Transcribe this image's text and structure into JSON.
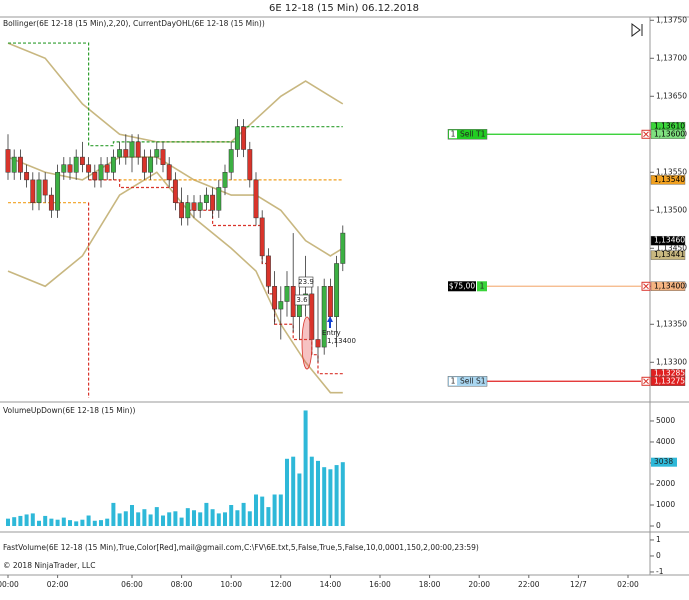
{
  "title": "6E 12-18 (15 Min)  06.12.2018",
  "copyright": "© 2018 NinjaTrader, LLC",
  "x_axis": {
    "xlim": [
      -1.29,
      103.55
    ],
    "xticks": [
      {
        "value": 0,
        "label": "00:00"
      },
      {
        "value": 8,
        "label": "02:00"
      },
      {
        "value": 20,
        "label": "06:00"
      },
      {
        "value": 28,
        "label": "08:00"
      },
      {
        "value": 36,
        "label": "10:00"
      },
      {
        "value": 44,
        "label": "12:00"
      },
      {
        "value": 52,
        "label": "14:00"
      },
      {
        "value": 60,
        "label": "16:00"
      },
      {
        "value": 68,
        "label": "18:00"
      },
      {
        "value": 76,
        "label": "20:00"
      },
      {
        "value": 84,
        "label": "22:00"
      },
      {
        "value": 92,
        "label": "12/7"
      },
      {
        "value": 100,
        "label": "02:00"
      }
    ]
  },
  "chart_data": [
    {
      "type": "candlestick",
      "label": "Bollinger(6E 12-18 (15 Min),2,20), CurrentDayOHL(6E 12-18 (15 Min))",
      "ylim": [
        1.13253,
        1.13753
      ],
      "yticks": [
        {
          "value": 1.1375,
          "label": "1,13750"
        },
        {
          "value": 1.137,
          "label": "1,13700"
        },
        {
          "value": 1.1365,
          "label": "1,13650"
        },
        {
          "value": 1.136,
          "label": "1,13600"
        },
        {
          "value": 1.1355,
          "label": "1,13550"
        },
        {
          "value": 1.135,
          "label": "1,13500"
        },
        {
          "value": 1.1345,
          "label": "1,13450"
        },
        {
          "value": 1.134,
          "label": "1,13400"
        },
        {
          "value": 1.1335,
          "label": "1,13350"
        },
        {
          "value": 1.133,
          "label": "1,13300"
        }
      ],
      "up_color": "#3cb043",
      "down_color": "#d9342b",
      "x": [
        0,
        1,
        2,
        3,
        4,
        5,
        6,
        7,
        8,
        9,
        10,
        11,
        12,
        13,
        14,
        15,
        16,
        17,
        18,
        19,
        20,
        21,
        22,
        23,
        24,
        25,
        26,
        27,
        28,
        29,
        30,
        31,
        32,
        33,
        34,
        35,
        36,
        37,
        38,
        39,
        40,
        41,
        42,
        43,
        44,
        45,
        46,
        47,
        48,
        49,
        50,
        51,
        52,
        53,
        54
      ],
      "open": [
        1.1358,
        1.1355,
        1.1357,
        1.1355,
        1.1354,
        1.1351,
        1.1354,
        1.1352,
        1.135,
        1.1355,
        1.1356,
        1.1355,
        1.1357,
        1.1356,
        1.1355,
        1.1354,
        1.1356,
        1.1355,
        1.1357,
        1.1358,
        1.1357,
        1.1359,
        1.1357,
        1.1355,
        1.1357,
        1.1358,
        1.1356,
        1.1354,
        1.1351,
        1.1349,
        1.1351,
        1.135,
        1.1351,
        1.1352,
        1.135,
        1.1353,
        1.1355,
        1.1358,
        1.1361,
        1.1358,
        1.1354,
        1.1349,
        1.1344,
        1.134,
        1.1337,
        1.1338,
        1.134,
        1.1336,
        1.1338,
        1.1339,
        1.1333,
        1.1332,
        1.134,
        1.1336,
        1.1343
      ],
      "high": [
        1.136,
        1.1358,
        1.1358,
        1.1356,
        1.1355,
        1.1355,
        1.1355,
        1.1353,
        1.1356,
        1.1357,
        1.1357,
        1.1358,
        1.1359,
        1.1357,
        1.1356,
        1.1357,
        1.1357,
        1.1358,
        1.1359,
        1.136,
        1.136,
        1.136,
        1.1358,
        1.1358,
        1.1359,
        1.1359,
        1.1357,
        1.1355,
        1.1353,
        1.1352,
        1.1352,
        1.1352,
        1.1353,
        1.1353,
        1.1354,
        1.1356,
        1.1359,
        1.1362,
        1.1362,
        1.1359,
        1.1355,
        1.135,
        1.1345,
        1.1342,
        1.134,
        1.1342,
        1.1347,
        1.134,
        1.1344,
        1.1341,
        1.134,
        1.1341,
        1.1341,
        1.1344,
        1.1348
      ],
      "low": [
        1.1354,
        1.1354,
        1.1354,
        1.1353,
        1.135,
        1.135,
        1.1351,
        1.1349,
        1.1349,
        1.1354,
        1.1354,
        1.1354,
        1.1355,
        1.1354,
        1.1353,
        1.1353,
        1.1354,
        1.1354,
        1.1356,
        1.1356,
        1.1355,
        1.1356,
        1.1354,
        1.1354,
        1.1356,
        1.1355,
        1.1353,
        1.135,
        1.1348,
        1.1348,
        1.1349,
        1.1349,
        1.135,
        1.1349,
        1.1349,
        1.1352,
        1.1354,
        1.1357,
        1.1357,
        1.1353,
        1.1348,
        1.1343,
        1.1339,
        1.1335,
        1.1333,
        1.1336,
        1.1334,
        1.1333,
        1.1336,
        1.1331,
        1.133,
        1.1331,
        1.1335,
        1.1332,
        1.1342
      ],
      "close": [
        1.1355,
        1.1357,
        1.1355,
        1.1354,
        1.1351,
        1.1354,
        1.1352,
        1.135,
        1.1355,
        1.1356,
        1.1355,
        1.1357,
        1.1356,
        1.1355,
        1.1354,
        1.1356,
        1.1355,
        1.1357,
        1.1358,
        1.1357,
        1.1359,
        1.1357,
        1.1355,
        1.1357,
        1.1358,
        1.1356,
        1.1354,
        1.1351,
        1.1349,
        1.1351,
        1.135,
        1.1351,
        1.1352,
        1.135,
        1.1353,
        1.1355,
        1.1358,
        1.1361,
        1.1358,
        1.1354,
        1.1349,
        1.1344,
        1.134,
        1.1337,
        1.1338,
        1.134,
        1.1336,
        1.1338,
        1.1339,
        1.1333,
        1.1332,
        1.134,
        1.1336,
        1.1343,
        1.1347
      ],
      "lines": [
        {
          "color": "#c8b780",
          "style": "solid",
          "x": [
            0,
            6,
            12,
            18,
            24,
            30,
            36,
            40,
            44,
            48,
            52,
            54
          ],
          "values": [
            1.1372,
            1.137,
            1.1364,
            1.136,
            1.1359,
            1.1359,
            1.1359,
            1.1362,
            1.1365,
            1.1367,
            1.1365,
            1.1364
          ]
        },
        {
          "color": "#c8b780",
          "style": "solid",
          "x": [
            0,
            6,
            12,
            18,
            24,
            30,
            36,
            40,
            44,
            48,
            52,
            54
          ],
          "values": [
            1.1357,
            1.1355,
            1.1354,
            1.1357,
            1.1357,
            1.1354,
            1.1352,
            1.1352,
            1.135,
            1.1346,
            1.1344,
            1.1345
          ]
        },
        {
          "color": "#c8b780",
          "style": "solid",
          "x": [
            0,
            6,
            12,
            18,
            24,
            30,
            36,
            40,
            44,
            48,
            52,
            54
          ],
          "values": [
            1.1342,
            1.134,
            1.1344,
            1.1352,
            1.1355,
            1.1349,
            1.1345,
            1.1342,
            1.1335,
            1.133,
            1.1326,
            1.1326
          ]
        },
        {
          "color": "#2e9e2e",
          "style": "dashed",
          "x": [
            0,
            13,
            13,
            17,
            17,
            37,
            37,
            54
          ],
          "values": [
            1.1372,
            1.1372,
            1.13585,
            1.13585,
            1.1359,
            1.1359,
            1.1361,
            1.1361
          ]
        },
        {
          "color": "#f0a020",
          "style": "dashed",
          "x": [
            0,
            13
          ],
          "values": [
            1.1351,
            1.1351
          ]
        },
        {
          "color": "#f0a020",
          "style": "dashed",
          "x": [
            13,
            54
          ],
          "values": [
            1.1354,
            1.1354
          ]
        },
        {
          "color": "#d9342b",
          "style": "dashed",
          "x": [
            13,
            13
          ],
          "values": [
            1.1351,
            1.13253
          ]
        },
        {
          "color": "#d9342b",
          "style": "dashed",
          "x": [
            13,
            18,
            18,
            27,
            27,
            29,
            29,
            33,
            33,
            41,
            41,
            42,
            42,
            43,
            43,
            46,
            46,
            49,
            49,
            50,
            50,
            54
          ],
          "values": [
            1.1354,
            1.1354,
            1.1353,
            1.1353,
            1.1351,
            1.1351,
            1.135,
            1.135,
            1.1348,
            1.1348,
            1.1343,
            1.1343,
            1.1339,
            1.1339,
            1.1335,
            1.1335,
            1.1333,
            1.1333,
            1.1331,
            1.1331,
            1.13285,
            1.13285
          ]
        }
      ],
      "price_markers": [
        {
          "value": 1.1361,
          "label": "1,13610",
          "color": "#3ad43a",
          "text_color": "#000000"
        },
        {
          "value": 1.136,
          "label": "1,13600",
          "color": "#7fe07f",
          "text_color": "#000000"
        },
        {
          "value": 1.1354,
          "label": "1,13540",
          "color": "#f0a020",
          "text_color": "#000000"
        },
        {
          "value": 1.1346,
          "label": "1,13460",
          "color": "#000000",
          "text_color": "#ffffff"
        },
        {
          "value": 1.13441,
          "label": "1,13441",
          "color": "#c8b780",
          "text_color": "#000000"
        },
        {
          "value": 1.134,
          "label": "1,13400",
          "color": "#f4b482",
          "text_color": "#000000"
        },
        {
          "value": 1.13285,
          "label": "1,13285",
          "color": "#e02020",
          "text_color": "#ffffff"
        },
        {
          "value": 1.13275,
          "label": "1,13275",
          "color": "#e02020",
          "text_color": "#ffffff"
        }
      ],
      "orders": [
        {
          "value": 1.136,
          "quantity": 1,
          "action": "Sell",
          "name": "T1",
          "color": "#22cc22"
        },
        {
          "value": 1.134,
          "pnl": "$75,00",
          "quantity": 1,
          "color": "#f4b482"
        },
        {
          "value": 1.13275,
          "quantity": 1,
          "action": "Sell",
          "name": "S1",
          "color": "#e02020"
        }
      ],
      "annotations": [
        "23.9",
        "3.6",
        "Entry",
        "1,13400"
      ]
    },
    {
      "type": "bar",
      "label": "VolumeUpDown(6E 12-18 (15 Min))",
      "color": "#2eb8d8",
      "ylim": [
        -190,
        5760
      ],
      "yticks": [
        0,
        1000,
        2000,
        3000,
        4000,
        5000
      ],
      "x": [
        0,
        1,
        2,
        3,
        4,
        5,
        6,
        7,
        8,
        9,
        10,
        11,
        12,
        13,
        14,
        15,
        16,
        17,
        18,
        19,
        20,
        21,
        22,
        23,
        24,
        25,
        26,
        27,
        28,
        29,
        30,
        31,
        32,
        33,
        34,
        35,
        36,
        37,
        38,
        39,
        40,
        41,
        42,
        43,
        44,
        45,
        46,
        47,
        48,
        49,
        50,
        51,
        52,
        53,
        54
      ],
      "values": [
        350,
        420,
        480,
        550,
        600,
        250,
        480,
        350,
        300,
        400,
        280,
        220,
        300,
        500,
        250,
        280,
        350,
        1100,
        600,
        700,
        1000,
        650,
        800,
        550,
        900,
        500,
        650,
        700,
        400,
        850,
        750,
        650,
        1100,
        800,
        600,
        650,
        1000,
        750,
        1100,
        700,
        1500,
        1400,
        900,
        1500,
        1500,
        3200,
        3300,
        2500,
        5500,
        3300,
        3100,
        2800,
        2700,
        2900,
        3038
      ],
      "marker": {
        "value": 3038,
        "label": "3038",
        "color": "#2eb8d8"
      }
    },
    {
      "type": "line",
      "label": "FastVolume(6E 12-18 (15 Min),True,Color[Red],mail@gmail.com,C:\\FV\\6E.txt,5,False,True,5,False,10,0,0001,150,2,00:00,23:59)",
      "ylim": [
        -1.19,
        1.31
      ],
      "yticks": [
        1,
        0,
        -1
      ]
    }
  ]
}
